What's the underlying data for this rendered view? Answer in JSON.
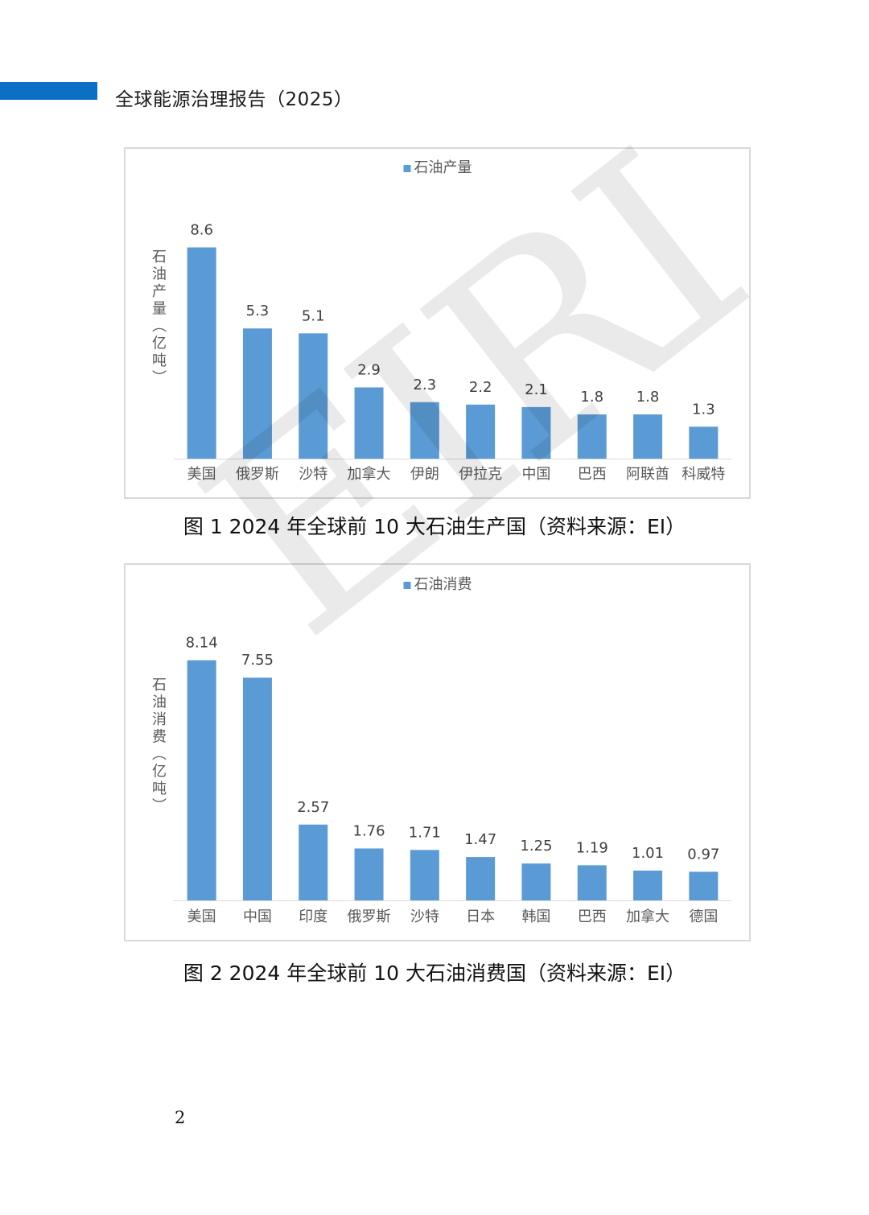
{
  "header": {
    "title": "全球能源治理报告（2025）",
    "accent_color": "#0b6fc6"
  },
  "watermark": {
    "text": "EIRI"
  },
  "figures": [
    {
      "caption": "图 1 2024 年全球前 10 大石油生产国（资料来源：EI）"
    },
    {
      "caption": "图 2 2024 年全球前 10 大石油消费国（资料来源：EI）"
    }
  ],
  "chart_data": [
    {
      "type": "bar",
      "title": "",
      "legend": [
        "石油产量"
      ],
      "legend_position": "top-center",
      "ylabel": "石油产量（亿吨）",
      "xlabel": "",
      "ylim": [
        0,
        9.5
      ],
      "grid": false,
      "color": "#5b9bd5",
      "categories": [
        "美国",
        "俄罗斯",
        "沙特",
        "加拿大",
        "伊朗",
        "伊拉克",
        "中国",
        "巴西",
        "阿联酋",
        "科威特"
      ],
      "series": [
        {
          "name": "石油产量",
          "values": [
            8.6,
            5.3,
            5.1,
            2.9,
            2.3,
            2.2,
            2.1,
            1.8,
            1.8,
            1.3
          ]
        }
      ],
      "data_labels": [
        "8.6",
        "5.3",
        "5.1",
        "2.9",
        "2.3",
        "2.2",
        "2.1",
        "1.8",
        "1.8",
        "1.3"
      ]
    },
    {
      "type": "bar",
      "title": "",
      "legend": [
        "石油消费"
      ],
      "legend_position": "top-center",
      "ylabel": "石油消费（亿吨）",
      "xlabel": "",
      "ylim": [
        0,
        9.0
      ],
      "grid": false,
      "color": "#5b9bd5",
      "categories": [
        "美国",
        "中国",
        "印度",
        "俄罗斯",
        "沙特",
        "日本",
        "韩国",
        "巴西",
        "加拿大",
        "德国"
      ],
      "series": [
        {
          "name": "石油消费",
          "values": [
            8.14,
            7.55,
            2.57,
            1.76,
            1.71,
            1.47,
            1.25,
            1.19,
            1.01,
            0.97
          ]
        }
      ],
      "data_labels": [
        "8.14",
        "7.55",
        "2.57",
        "1.76",
        "1.71",
        "1.47",
        "1.25",
        "1.19",
        "1.01",
        "0.97"
      ]
    }
  ],
  "footer": {
    "page_number": "2"
  }
}
